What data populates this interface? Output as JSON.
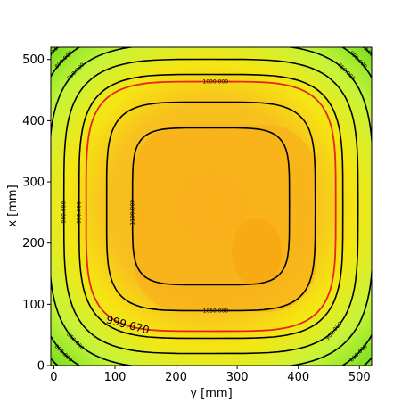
{
  "chart_data": {
    "type": "contour",
    "xlabel": "y [mm]",
    "ylabel": "x [mm]",
    "xlim": [
      -5,
      520
    ],
    "ylim": [
      0,
      520
    ],
    "xticks": [
      0,
      100,
      200,
      300,
      400,
      500
    ],
    "yticks": [
      0,
      100,
      200,
      300,
      400,
      500
    ],
    "grid": false,
    "colormap": [
      "#6edc1a",
      "#c6f43a",
      "#f5e612",
      "#f8c11e",
      "#f8ac1a"
    ],
    "levels": [
      {
        "value": 750,
        "label": "750.000",
        "color": "#000000"
      },
      {
        "value": 800,
        "label": "800.000",
        "color": "#000000"
      },
      {
        "value": 850,
        "label": "850.000",
        "color": "#000000"
      },
      {
        "value": 900,
        "label": "900.000",
        "color": "#000000"
      },
      {
        "value": 950,
        "label": "950.000",
        "color": "#000000"
      },
      {
        "value": 999.67,
        "label": "999.670",
        "color": "#000000"
      },
      {
        "value": 1000,
        "label": "1000.000",
        "color": "#e8231f"
      },
      {
        "value": 1050,
        "label": "1050.000",
        "color": "#000000"
      },
      {
        "value": 1100,
        "label": "1100.000",
        "color": "#000000"
      }
    ],
    "max_value_region": {
      "y_center": 290,
      "x_center": 175
    }
  }
}
